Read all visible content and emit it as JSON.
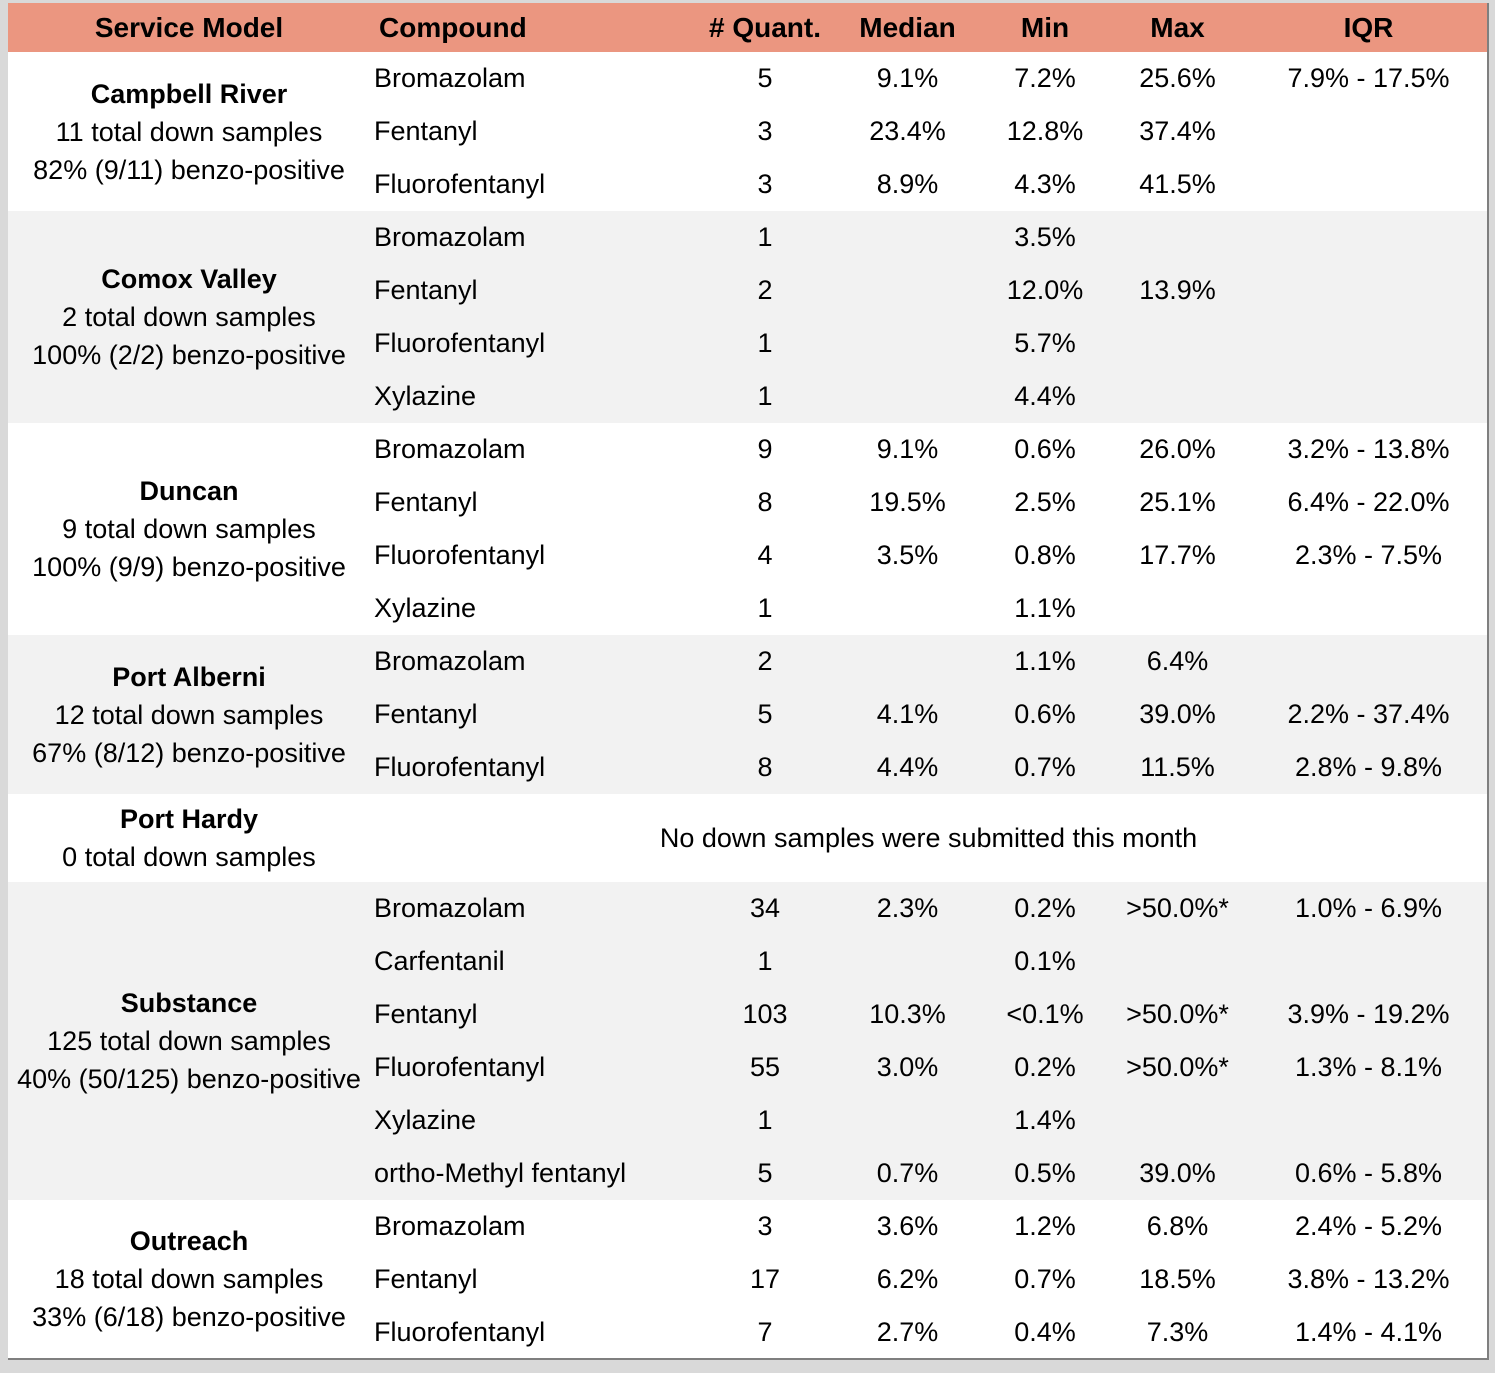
{
  "colors": {
    "header_bg": "#EB9680",
    "alt_row_bg": "#F2F2F2",
    "page_bg": "#D9D9D9",
    "edge_border": "#7F7F7F"
  },
  "table": {
    "columns": [
      "Service Model",
      "Compound",
      "# Quant.",
      "Median",
      "Min",
      "Max",
      "IQR"
    ],
    "groups": [
      {
        "name": "Campbell River",
        "subtitle_lines": [
          "11 total down samples",
          "82% (9/11) benzo-positive"
        ],
        "rows": [
          {
            "compound": "Bromazolam",
            "quant": "5",
            "median": "9.1%",
            "min": "7.2%",
            "max": "25.6%",
            "iqr": "7.9% - 17.5%"
          },
          {
            "compound": "Fentanyl",
            "quant": "3",
            "median": "23.4%",
            "min": "12.8%",
            "max": "37.4%",
            "iqr": ""
          },
          {
            "compound": "Fluorofentanyl",
            "quant": "3",
            "median": "8.9%",
            "min": "4.3%",
            "max": "41.5%",
            "iqr": ""
          }
        ]
      },
      {
        "name": "Comox Valley",
        "subtitle_lines": [
          "2 total down samples",
          "100% (2/2) benzo-positive"
        ],
        "rows": [
          {
            "compound": "Bromazolam",
            "quant": "1",
            "median": "",
            "min": "3.5%",
            "max": "",
            "iqr": ""
          },
          {
            "compound": "Fentanyl",
            "quant": "2",
            "median": "",
            "min": "12.0%",
            "max": "13.9%",
            "iqr": ""
          },
          {
            "compound": "Fluorofentanyl",
            "quant": "1",
            "median": "",
            "min": "5.7%",
            "max": "",
            "iqr": ""
          },
          {
            "compound": "Xylazine",
            "quant": "1",
            "median": "",
            "min": "4.4%",
            "max": "",
            "iqr": ""
          }
        ]
      },
      {
        "name": "Duncan",
        "subtitle_lines": [
          "9 total down samples",
          "100% (9/9) benzo-positive"
        ],
        "rows": [
          {
            "compound": "Bromazolam",
            "quant": "9",
            "median": "9.1%",
            "min": "0.6%",
            "max": "26.0%",
            "iqr": "3.2% - 13.8%"
          },
          {
            "compound": "Fentanyl",
            "quant": "8",
            "median": "19.5%",
            "min": "2.5%",
            "max": "25.1%",
            "iqr": "6.4% - 22.0%"
          },
          {
            "compound": "Fluorofentanyl",
            "quant": "4",
            "median": "3.5%",
            "min": "0.8%",
            "max": "17.7%",
            "iqr": "2.3% - 7.5%"
          },
          {
            "compound": "Xylazine",
            "quant": "1",
            "median": "",
            "min": "1.1%",
            "max": "",
            "iqr": ""
          }
        ]
      },
      {
        "name": "Port Alberni",
        "subtitle_lines": [
          "12 total down samples",
          "67% (8/12) benzo-positive"
        ],
        "rows": [
          {
            "compound": "Bromazolam",
            "quant": "2",
            "median": "",
            "min": "1.1%",
            "max": "6.4%",
            "iqr": ""
          },
          {
            "compound": "Fentanyl",
            "quant": "5",
            "median": "4.1%",
            "min": "0.6%",
            "max": "39.0%",
            "iqr": "2.2% - 37.4%"
          },
          {
            "compound": "Fluorofentanyl",
            "quant": "8",
            "median": "4.4%",
            "min": "0.7%",
            "max": "11.5%",
            "iqr": "2.8% - 9.8%"
          }
        ]
      },
      {
        "name": "Port Hardy",
        "subtitle_lines": [
          "0 total down samples"
        ],
        "message": "No down samples were submitted this month"
      },
      {
        "name": "Substance",
        "subtitle_lines": [
          "125 total down samples",
          "40% (50/125) benzo-positive"
        ],
        "rows": [
          {
            "compound": "Bromazolam",
            "quant": "34",
            "median": "2.3%",
            "min": "0.2%",
            "max": ">50.0%*",
            "iqr": "1.0% - 6.9%"
          },
          {
            "compound": "Carfentanil",
            "quant": "1",
            "median": "",
            "min": "0.1%",
            "max": "",
            "iqr": ""
          },
          {
            "compound": "Fentanyl",
            "quant": "103",
            "median": "10.3%",
            "min": "<0.1%",
            "max": ">50.0%*",
            "iqr": "3.9% - 19.2%"
          },
          {
            "compound": "Fluorofentanyl",
            "quant": "55",
            "median": "3.0%",
            "min": "0.2%",
            "max": ">50.0%*",
            "iqr": "1.3% - 8.1%"
          },
          {
            "compound": "Xylazine",
            "quant": "1",
            "median": "",
            "min": "1.4%",
            "max": "",
            "iqr": ""
          },
          {
            "compound": "ortho-Methyl fentanyl",
            "quant": "5",
            "median": "0.7%",
            "min": "0.5%",
            "max": "39.0%",
            "iqr": "0.6% - 5.8%"
          }
        ]
      },
      {
        "name": "Outreach",
        "subtitle_lines": [
          "18 total down samples",
          "33% (6/18) benzo-positive"
        ],
        "rows": [
          {
            "compound": "Bromazolam",
            "quant": "3",
            "median": "3.6%",
            "min": "1.2%",
            "max": "6.8%",
            "iqr": "2.4% - 5.2%"
          },
          {
            "compound": "Fentanyl",
            "quant": "17",
            "median": "6.2%",
            "min": "0.7%",
            "max": "18.5%",
            "iqr": "3.8% - 13.2%"
          },
          {
            "compound": "Fluorofentanyl",
            "quant": "7",
            "median": "2.7%",
            "min": "0.4%",
            "max": "7.3%",
            "iqr": "1.4% - 4.1%"
          }
        ]
      }
    ]
  }
}
